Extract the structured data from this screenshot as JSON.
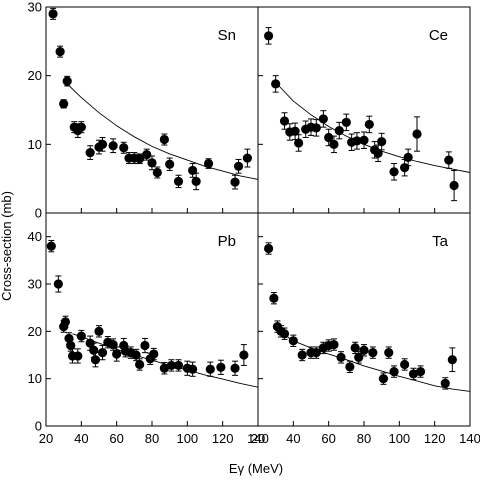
{
  "axis_labels": {
    "x": "Eγ (MeV)",
    "y": "Cross-section (mb)"
  },
  "chart_data": [
    {
      "type": "scatter",
      "panel_label": "Sn",
      "xlim": [
        20,
        140
      ],
      "ylim": [
        0,
        30
      ],
      "x_ticks": [
        20,
        40,
        60,
        80,
        100,
        120,
        140
      ],
      "y_ticks": [
        0,
        10,
        20,
        30
      ],
      "points": [
        {
          "x": 24,
          "y": 29.0,
          "err": 0.8
        },
        {
          "x": 28,
          "y": 23.5,
          "err": 0.8
        },
        {
          "x": 30,
          "y": 15.9,
          "err": 0.6
        },
        {
          "x": 32,
          "y": 19.2,
          "err": 0.7
        },
        {
          "x": 36,
          "y": 12.5,
          "err": 0.8
        },
        {
          "x": 38,
          "y": 12.0,
          "err": 1.0
        },
        {
          "x": 40,
          "y": 12.5,
          "err": 0.8
        },
        {
          "x": 45,
          "y": 8.8,
          "err": 1.0
        },
        {
          "x": 50,
          "y": 9.6,
          "err": 1.0
        },
        {
          "x": 52,
          "y": 10.0,
          "err": 1.0
        },
        {
          "x": 58,
          "y": 9.8,
          "err": 1.0
        },
        {
          "x": 64,
          "y": 9.5,
          "err": 0.8
        },
        {
          "x": 67,
          "y": 8.0,
          "err": 0.8
        },
        {
          "x": 70,
          "y": 8.0,
          "err": 0.8
        },
        {
          "x": 73,
          "y": 7.9,
          "err": 0.7
        },
        {
          "x": 77,
          "y": 8.5,
          "err": 0.8
        },
        {
          "x": 80,
          "y": 7.3,
          "err": 1.0
        },
        {
          "x": 83,
          "y": 5.9,
          "err": 0.8
        },
        {
          "x": 87,
          "y": 10.7,
          "err": 0.8
        },
        {
          "x": 90,
          "y": 7.1,
          "err": 0.9
        },
        {
          "x": 95,
          "y": 4.6,
          "err": 0.9
        },
        {
          "x": 103,
          "y": 6.2,
          "err": 1.0
        },
        {
          "x": 105,
          "y": 4.6,
          "err": 1.2
        },
        {
          "x": 112,
          "y": 7.2,
          "err": 0.7
        },
        {
          "x": 127,
          "y": 4.5,
          "err": 1.0
        },
        {
          "x": 129,
          "y": 6.8,
          "err": 1.0
        },
        {
          "x": 134,
          "y": 8.0,
          "err": 1.3
        }
      ],
      "curve": [
        [
          30,
          19.3
        ],
        [
          40,
          16.8
        ],
        [
          50,
          14.6
        ],
        [
          60,
          12.7
        ],
        [
          70,
          11.1
        ],
        [
          80,
          9.7
        ],
        [
          90,
          8.6
        ],
        [
          100,
          7.7
        ],
        [
          110,
          6.8
        ],
        [
          120,
          6.1
        ],
        [
          130,
          5.4
        ],
        [
          140,
          4.9
        ]
      ]
    },
    {
      "type": "scatter",
      "panel_label": "Ce",
      "xlim": [
        20,
        140
      ],
      "ylim": [
        0,
        30
      ],
      "x_ticks": [
        20,
        40,
        60,
        80,
        100,
        120,
        140
      ],
      "y_ticks": [
        0,
        10,
        20,
        30
      ],
      "points": [
        {
          "x": 26,
          "y": 25.8,
          "err": 1.2
        },
        {
          "x": 30,
          "y": 18.8,
          "err": 1.2
        },
        {
          "x": 35,
          "y": 13.4,
          "err": 1.2
        },
        {
          "x": 38,
          "y": 11.8,
          "err": 1.2
        },
        {
          "x": 41,
          "y": 11.9,
          "err": 1.2
        },
        {
          "x": 43,
          "y": 10.2,
          "err": 1.2
        },
        {
          "x": 47,
          "y": 12.2,
          "err": 1.2
        },
        {
          "x": 50,
          "y": 12.5,
          "err": 1.2
        },
        {
          "x": 53,
          "y": 12.4,
          "err": 1.2
        },
        {
          "x": 57,
          "y": 13.7,
          "err": 1.2
        },
        {
          "x": 60,
          "y": 11.0,
          "err": 1.2
        },
        {
          "x": 63,
          "y": 10.0,
          "err": 1.2
        },
        {
          "x": 66,
          "y": 12.0,
          "err": 1.2
        },
        {
          "x": 70,
          "y": 13.2,
          "err": 1.2
        },
        {
          "x": 73,
          "y": 10.3,
          "err": 1.2
        },
        {
          "x": 76,
          "y": 10.5,
          "err": 1.2
        },
        {
          "x": 80,
          "y": 10.6,
          "err": 1.2
        },
        {
          "x": 83,
          "y": 12.9,
          "err": 1.2
        },
        {
          "x": 86,
          "y": 9.2,
          "err": 1.2
        },
        {
          "x": 88,
          "y": 8.7,
          "err": 1.2
        },
        {
          "x": 90,
          "y": 10.4,
          "err": 1.2
        },
        {
          "x": 97,
          "y": 6.0,
          "err": 1.2
        },
        {
          "x": 103,
          "y": 6.6,
          "err": 1.2
        },
        {
          "x": 105,
          "y": 8.1,
          "err": 1.2
        },
        {
          "x": 110,
          "y": 11.5,
          "err": 2.5
        },
        {
          "x": 128,
          "y": 7.7,
          "err": 1.2
        },
        {
          "x": 131,
          "y": 4.0,
          "err": 2.2
        }
      ],
      "curve": [
        [
          30,
          19.0
        ],
        [
          40,
          16.3
        ],
        [
          50,
          14.3
        ],
        [
          60,
          12.6
        ],
        [
          70,
          11.2
        ],
        [
          80,
          10.0
        ],
        [
          90,
          9.0
        ],
        [
          100,
          8.2
        ],
        [
          110,
          7.5
        ],
        [
          120,
          6.9
        ],
        [
          130,
          6.4
        ],
        [
          140,
          5.9
        ]
      ]
    },
    {
      "type": "scatter",
      "panel_label": "Pb",
      "xlim": [
        20,
        140
      ],
      "ylim": [
        0,
        45
      ],
      "x_ticks": [
        20,
        40,
        60,
        80,
        100,
        120,
        140
      ],
      "y_ticks": [
        0,
        10,
        20,
        30,
        40
      ],
      "points": [
        {
          "x": 23,
          "y": 38.0,
          "err": 1.2
        },
        {
          "x": 27,
          "y": 30.0,
          "err": 1.7
        },
        {
          "x": 30,
          "y": 21.0,
          "err": 1.2
        },
        {
          "x": 31,
          "y": 22.0,
          "err": 1.2
        },
        {
          "x": 33,
          "y": 18.5,
          "err": 1.2
        },
        {
          "x": 34,
          "y": 17.0,
          "err": 1.2
        },
        {
          "x": 35,
          "y": 14.8,
          "err": 1.5
        },
        {
          "x": 38,
          "y": 14.8,
          "err": 1.5
        },
        {
          "x": 40,
          "y": 19.0,
          "err": 1.2
        },
        {
          "x": 45,
          "y": 17.5,
          "err": 1.5
        },
        {
          "x": 47,
          "y": 16.0,
          "err": 1.5
        },
        {
          "x": 48,
          "y": 14.0,
          "err": 1.5
        },
        {
          "x": 50,
          "y": 20.0,
          "err": 1.2
        },
        {
          "x": 52,
          "y": 15.5,
          "err": 1.5
        },
        {
          "x": 55,
          "y": 17.7,
          "err": 1.2
        },
        {
          "x": 58,
          "y": 17.2,
          "err": 1.2
        },
        {
          "x": 60,
          "y": 15.2,
          "err": 1.5
        },
        {
          "x": 64,
          "y": 17.0,
          "err": 1.5
        },
        {
          "x": 65,
          "y": 15.8,
          "err": 1.2
        },
        {
          "x": 68,
          "y": 15.5,
          "err": 1.2
        },
        {
          "x": 71,
          "y": 15.0,
          "err": 1.2
        },
        {
          "x": 73,
          "y": 13.0,
          "err": 1.2
        },
        {
          "x": 76,
          "y": 17.0,
          "err": 1.5
        },
        {
          "x": 79,
          "y": 14.2,
          "err": 1.2
        },
        {
          "x": 81,
          "y": 15.2,
          "err": 1.2
        },
        {
          "x": 87,
          "y": 12.2,
          "err": 1.2
        },
        {
          "x": 91,
          "y": 12.8,
          "err": 1.2
        },
        {
          "x": 95,
          "y": 12.8,
          "err": 1.2
        },
        {
          "x": 100,
          "y": 12.2,
          "err": 1.5
        },
        {
          "x": 103,
          "y": 12.0,
          "err": 1.5
        },
        {
          "x": 113,
          "y": 12.0,
          "err": 1.5
        },
        {
          "x": 119,
          "y": 12.4,
          "err": 1.5
        },
        {
          "x": 127,
          "y": 12.2,
          "err": 1.5
        },
        {
          "x": 132,
          "y": 15.0,
          "err": 2.2
        }
      ],
      "curve": [
        [
          35,
          19.5
        ],
        [
          50,
          17.5
        ],
        [
          60,
          16.2
        ],
        [
          70,
          15.0
        ],
        [
          80,
          13.9
        ],
        [
          90,
          12.8
        ],
        [
          100,
          11.8
        ],
        [
          110,
          10.8
        ],
        [
          120,
          9.9
        ],
        [
          130,
          9.0
        ],
        [
          140,
          8.2
        ]
      ]
    },
    {
      "type": "scatter",
      "panel_label": "Ta",
      "xlim": [
        20,
        140
      ],
      "ylim": [
        0,
        45
      ],
      "x_ticks": [
        20,
        40,
        60,
        80,
        100,
        120,
        140
      ],
      "y_ticks": [
        0,
        10,
        20,
        30,
        40
      ],
      "points": [
        {
          "x": 26,
          "y": 37.5,
          "err": 1.2
        },
        {
          "x": 29,
          "y": 27.0,
          "err": 1.2
        },
        {
          "x": 31,
          "y": 21.0,
          "err": 1.2
        },
        {
          "x": 33,
          "y": 20.0,
          "err": 1.2
        },
        {
          "x": 35,
          "y": 19.5,
          "err": 1.2
        },
        {
          "x": 40,
          "y": 18.0,
          "err": 1.2
        },
        {
          "x": 45,
          "y": 15.0,
          "err": 1.2
        },
        {
          "x": 50,
          "y": 15.5,
          "err": 1.2
        },
        {
          "x": 53,
          "y": 15.5,
          "err": 1.2
        },
        {
          "x": 57,
          "y": 16.5,
          "err": 1.2
        },
        {
          "x": 60,
          "y": 17.0,
          "err": 1.2
        },
        {
          "x": 63,
          "y": 17.2,
          "err": 1.2
        },
        {
          "x": 67,
          "y": 14.5,
          "err": 1.2
        },
        {
          "x": 72,
          "y": 12.5,
          "err": 1.2
        },
        {
          "x": 75,
          "y": 16.5,
          "err": 1.2
        },
        {
          "x": 77,
          "y": 14.5,
          "err": 1.2
        },
        {
          "x": 80,
          "y": 16.0,
          "err": 1.2
        },
        {
          "x": 85,
          "y": 15.5,
          "err": 1.2
        },
        {
          "x": 91,
          "y": 10.0,
          "err": 1.2
        },
        {
          "x": 94,
          "y": 15.5,
          "err": 1.2
        },
        {
          "x": 97,
          "y": 11.5,
          "err": 1.2
        },
        {
          "x": 103,
          "y": 13.0,
          "err": 1.2
        },
        {
          "x": 108,
          "y": 11.0,
          "err": 1.2
        },
        {
          "x": 112,
          "y": 11.5,
          "err": 1.2
        },
        {
          "x": 126,
          "y": 9.0,
          "err": 1.2
        },
        {
          "x": 130,
          "y": 14.0,
          "err": 2.5
        }
      ],
      "curve": [
        [
          30,
          20.5
        ],
        [
          40,
          18.0
        ],
        [
          50,
          16.5
        ],
        [
          60,
          15.2
        ],
        [
          70,
          14.0
        ],
        [
          80,
          12.7
        ],
        [
          90,
          11.6
        ],
        [
          100,
          10.5
        ],
        [
          110,
          9.5
        ],
        [
          120,
          8.5
        ],
        [
          130,
          7.8
        ],
        [
          140,
          7.3
        ]
      ]
    }
  ]
}
